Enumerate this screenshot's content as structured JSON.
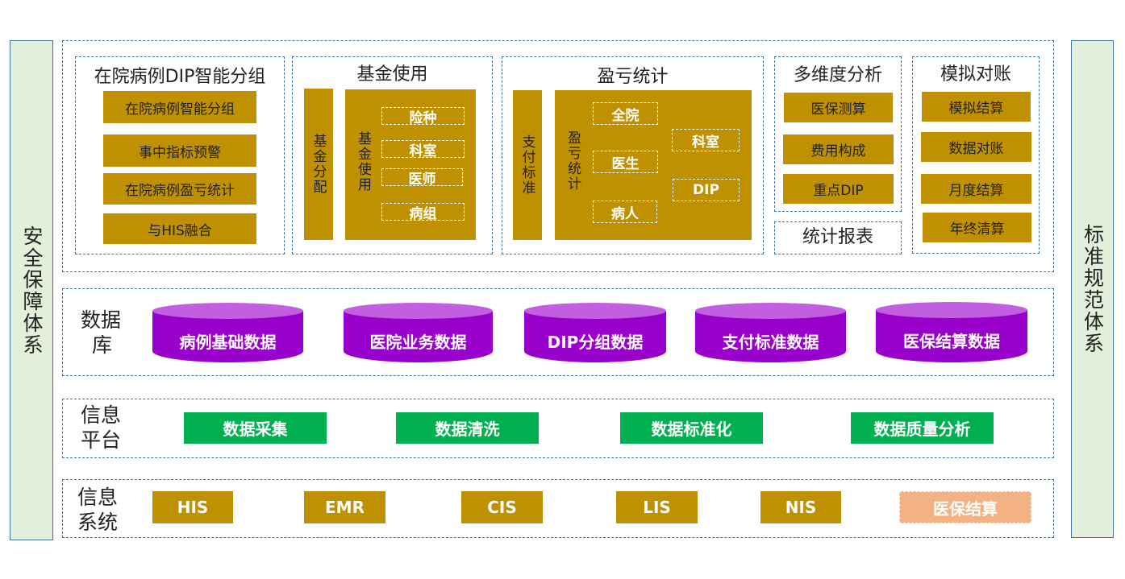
{
  "left_side": "安全保障体系",
  "right_side": "标准规范体系",
  "apps": {
    "grouping": {
      "title": "在院病例DIP智能分组",
      "items": [
        "在院病例智能分组",
        "事中指标预警",
        "在院病例盈亏统计",
        "与HIS融合"
      ]
    },
    "fund": {
      "title": "基金使用",
      "bar": "基金分配",
      "big": "基金使用",
      "items": [
        "险种",
        "科室",
        "医师",
        "病组"
      ]
    },
    "profit": {
      "title": "盈亏统计",
      "bar": "支付标准",
      "big": "盈亏统计",
      "items": [
        "全院",
        "医生",
        "病人",
        "科室",
        "DIP"
      ]
    },
    "analysis": {
      "title": "多维度分析",
      "items": [
        "医保测算",
        "费用构成",
        "重点DIP"
      ]
    },
    "report": {
      "title": "统计报表"
    },
    "reconcile": {
      "title": "模拟对账",
      "items": [
        "模拟结算",
        "数据对账",
        "月度结算",
        "年终清算"
      ]
    }
  },
  "database": {
    "label_l1": "数据",
    "label_l2": "库",
    "items": [
      "病例基础数据",
      "医院业务数据",
      "DIP分组数据",
      "支付标准数据",
      "医保结算数据"
    ]
  },
  "platform": {
    "label_l1": "信息",
    "label_l2": "平台",
    "items": [
      "数据采集",
      "数据清洗",
      "数据标准化",
      "数据质量分析"
    ]
  },
  "systems": {
    "label_l1": "信息",
    "label_l2": "系统",
    "items": [
      "HIS",
      "EMR",
      "CIS",
      "LIS",
      "NIS",
      "医保结算"
    ]
  },
  "colors": {
    "gold": "#BF9000",
    "purple": "#9900CC",
    "green": "#00B050",
    "highlight": "#F4B183",
    "side": "#E2EFDA"
  }
}
